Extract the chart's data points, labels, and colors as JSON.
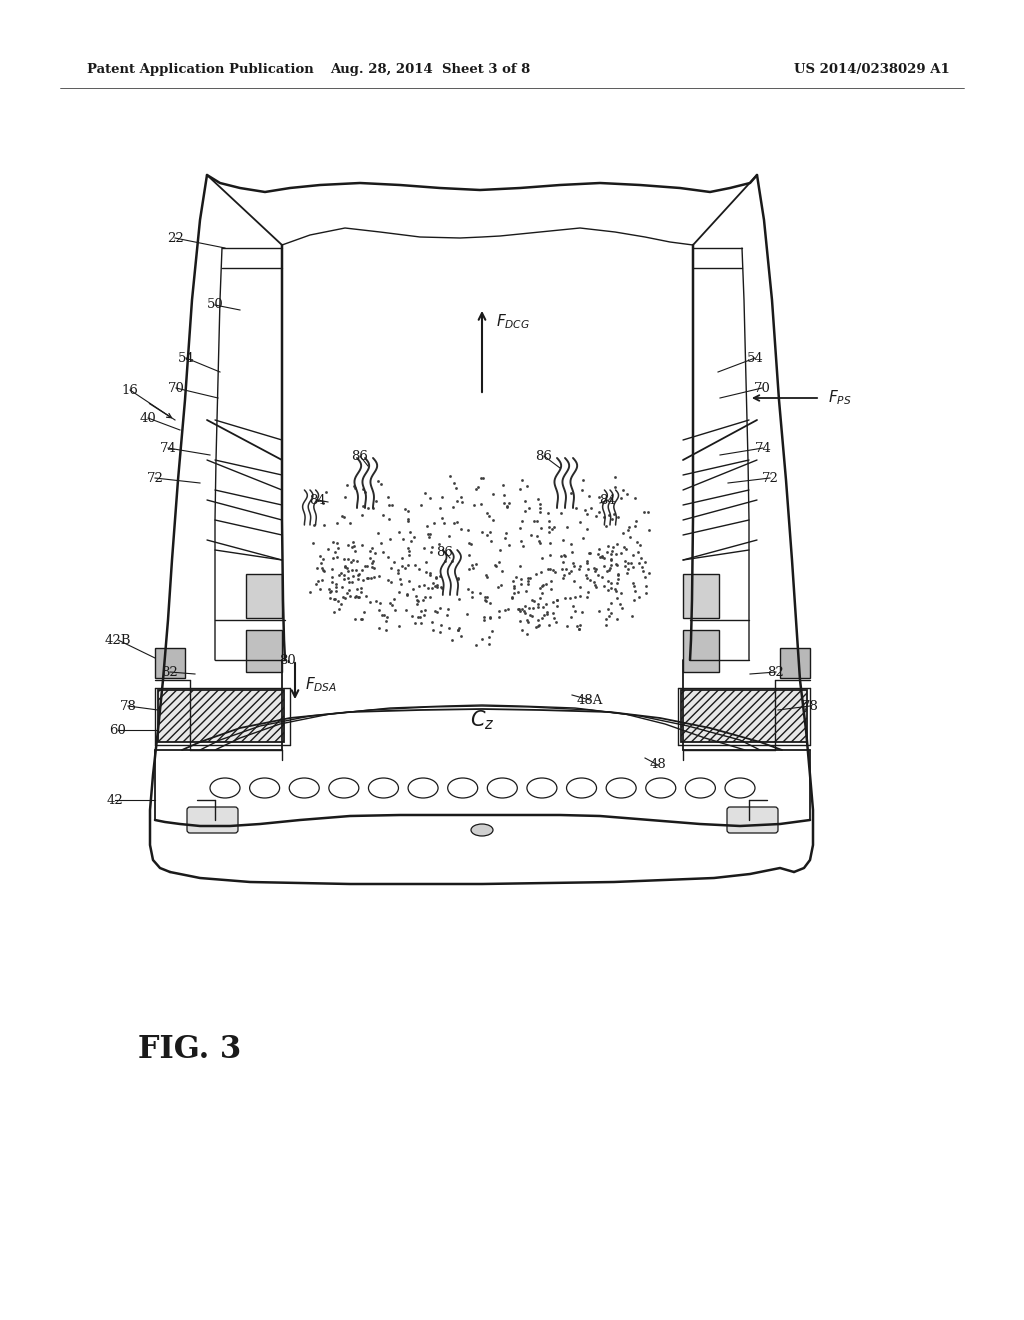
{
  "header_left": "Patent Application Publication",
  "header_mid": "Aug. 28, 2014  Sheet 3 of 8",
  "header_right": "US 2014/0238029 A1",
  "fig_label": "FIG. 3",
  "background": "#ffffff",
  "text_color": "#1a1a1a",
  "line_color": "#1a1a1a",
  "gray_fill": "#c8c8c8",
  "light_gray": "#e0e0e0",
  "hatch_gray": "#aaaaaa"
}
